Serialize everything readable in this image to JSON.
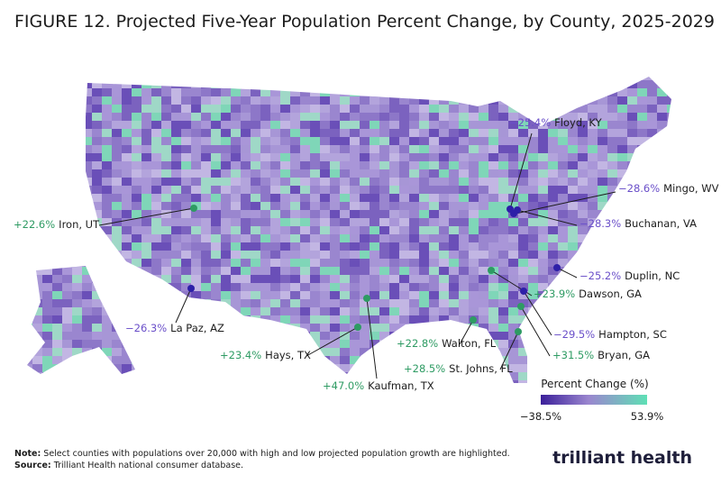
{
  "title": "FIGURE 12. Projected Five-Year Population Percent Change, by County, 2025-2029",
  "annotations": [
    {
      "value": "−25.4%",
      "label": "Floyd, KY"
    },
    {
      "value": "−28.6%",
      "label": "Mingo, WV"
    },
    {
      "value": "−28.3%",
      "label": "Buchanan, VA"
    },
    {
      "value": "−25.2%",
      "label": "Duplin, NC"
    },
    {
      "value": "+23.9%",
      "label": "Dawson, GA"
    },
    {
      "value": "−29.5%",
      "label": "Hampton, SC"
    },
    {
      "value": "+31.5%",
      "label": "Bryan, GA"
    },
    {
      "value": "+28.5%",
      "label": "St. Johns, FL"
    },
    {
      "value": "+22.8%",
      "label": "Walton, FL"
    },
    {
      "value": "+23.4%",
      "label": "Hays, TX"
    },
    {
      "value": "+47.0%",
      "label": "Kaufman, TX"
    },
    {
      "value": "−26.3%",
      "label": "La Paz, AZ"
    },
    {
      "value": "+22.6%",
      "label": "Iron, UT"
    }
  ],
  "legend": {
    "title": "Percent Change (%)",
    "min": "−38.5%",
    "max": "53.9%"
  },
  "note": {
    "label": "Note:",
    "text": "Select counties with populations over 20,000 with high and low projected population growth are highlighted."
  },
  "source": {
    "label": "Source:",
    "text": "Trilliant Health national consumer database."
  },
  "logo": "trilliant health"
}
